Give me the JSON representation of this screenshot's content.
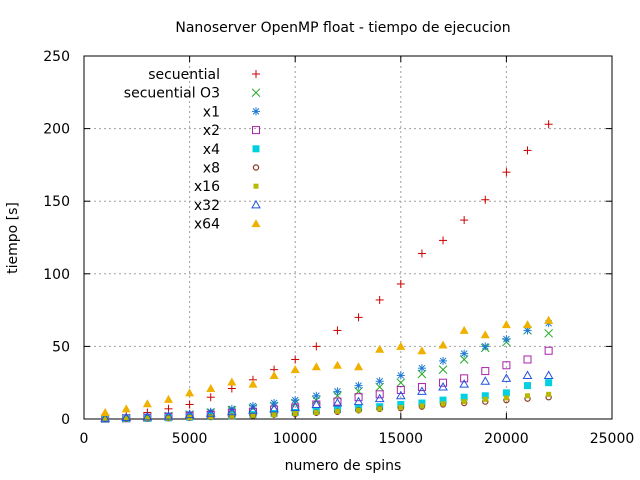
{
  "chart_data": {
    "type": "scatter",
    "title": "Nanoserver OpenMP float - tiempo de ejecucion",
    "xlabel": "numero de spins",
    "ylabel": "tiempo [s]",
    "xlim": [
      0,
      25000
    ],
    "ylim": [
      0,
      250
    ],
    "xticks": [
      "0",
      "5000",
      "10000",
      "15000",
      "20000",
      "25000"
    ],
    "yticks": [
      "0",
      "50",
      "100",
      "150",
      "200",
      "250"
    ],
    "grid": true,
    "legend_position": "top-left",
    "x": [
      1000,
      2000,
      3000,
      4000,
      5000,
      6000,
      7000,
      8000,
      9000,
      10000,
      11000,
      12000,
      13000,
      14000,
      15000,
      16000,
      17000,
      18000,
      19000,
      20000,
      21000,
      22000
    ],
    "series": [
      {
        "name": "secuential",
        "color": "#cc0000",
        "marker": "plus",
        "values": [
          1.2,
          2,
          4.5,
          7,
          10,
          15,
          21,
          27,
          34,
          41,
          50,
          61,
          70,
          82,
          93,
          114,
          123,
          137,
          151,
          170,
          185,
          203
        ]
      },
      {
        "name": "secuential O3",
        "color": "#22aa22",
        "marker": "cross",
        "values": [
          0.3,
          0.6,
          1.2,
          2,
          3,
          4.5,
          6,
          7.5,
          9,
          11,
          13,
          16,
          19,
          22,
          25,
          31,
          34,
          41,
          49,
          53,
          61,
          59
        ]
      },
      {
        "name": "x1",
        "color": "#1e7ad6",
        "marker": "star",
        "values": [
          0.4,
          0.8,
          1.5,
          2.5,
          3.5,
          5,
          7,
          9,
          11,
          13,
          16,
          19,
          23,
          26,
          30,
          35,
          40,
          45,
          50,
          55,
          61,
          66
        ]
      },
      {
        "name": "x2",
        "color": "#aa22aa",
        "marker": "square",
        "values": [
          0.2,
          0.5,
          0.9,
          1.5,
          2.2,
          3,
          4,
          5,
          6.5,
          8,
          10,
          12,
          15,
          17,
          20,
          22,
          25,
          28,
          33,
          37,
          41,
          47
        ]
      },
      {
        "name": "x4",
        "color": "#00d0e0",
        "marker": "filled-square",
        "values": [
          0.1,
          0.3,
          0.5,
          0.8,
          1.2,
          1.7,
          2.2,
          3,
          3.8,
          4.5,
          5.5,
          6.5,
          7.5,
          8.5,
          10,
          11,
          13,
          15,
          16,
          18,
          23,
          25
        ]
      },
      {
        "name": "x8",
        "color": "#8b3a2a",
        "marker": "circle",
        "values": [
          0.1,
          0.2,
          0.4,
          0.6,
          1,
          1.3,
          1.8,
          2.3,
          3,
          3.5,
          4.3,
          5,
          6,
          7,
          7.5,
          8.5,
          10,
          11,
          12,
          13,
          14,
          15
        ]
      },
      {
        "name": "x16",
        "color": "#b8b800",
        "marker": "filled-square-small",
        "values": [
          0.1,
          0.2,
          0.4,
          0.6,
          1,
          1.4,
          2,
          2.5,
          3,
          3.8,
          4.5,
          5.3,
          6,
          7,
          8,
          9,
          10.5,
          12,
          13.5,
          14.5,
          16,
          17
        ]
      },
      {
        "name": "x32",
        "color": "#2255dd",
        "marker": "triangle",
        "values": [
          0.5,
          1,
          1.5,
          2,
          3,
          4,
          5,
          6,
          7,
          8,
          10,
          11,
          12,
          14,
          16,
          19,
          22,
          24,
          26,
          28,
          30,
          30
        ]
      },
      {
        "name": "x64",
        "color": "#f0b000",
        "marker": "filled-triangle",
        "values": [
          4.5,
          7,
          10.5,
          13.5,
          18,
          21,
          25.5,
          24,
          30,
          34,
          36,
          37,
          36,
          48,
          50,
          47,
          51,
          61,
          58,
          65,
          65,
          68
        ]
      }
    ]
  }
}
